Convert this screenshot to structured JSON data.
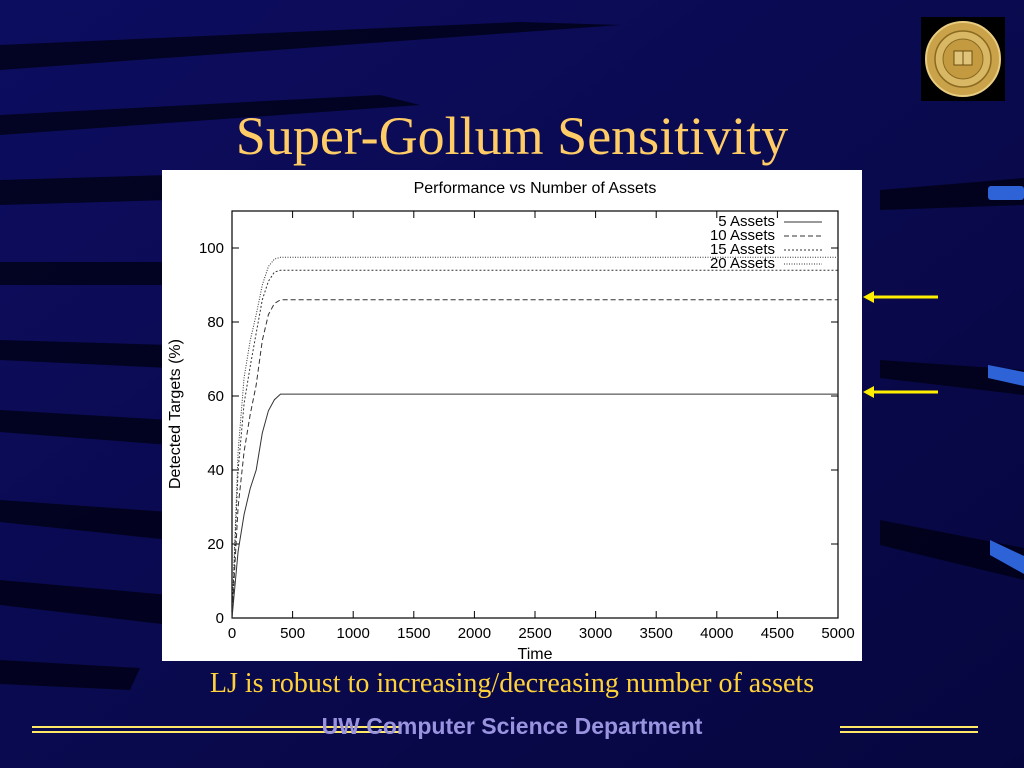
{
  "slide": {
    "title": "Super-Gollum Sensitivity",
    "caption": "LJ is robust to increasing/decreasing number of assets",
    "footer": "UW Computer Science Department",
    "colors": {
      "background": "#0a0a55",
      "title": "#ffcc66",
      "caption": "#ffd23a",
      "footer_text": "#9a94e0",
      "footer_rule": "#ffe866",
      "arrow": "#ffee00"
    },
    "logo_icon": "university-seal-icon"
  },
  "chart_data": {
    "type": "line",
    "title": "Performance vs Number of Assets",
    "xlabel": "Time",
    "ylabel": "Detected Targets (%)",
    "xlim": [
      0,
      5000
    ],
    "ylim": [
      0,
      110
    ],
    "x_ticks": [
      0,
      500,
      1000,
      1500,
      2000,
      2500,
      3000,
      3500,
      4000,
      4500,
      5000
    ],
    "y_ticks": [
      0,
      20,
      40,
      60,
      80,
      100
    ],
    "legend_position": "top-right",
    "grid": false,
    "series": [
      {
        "name": "5 Assets",
        "dash": "solid",
        "x": [
          0,
          50,
          100,
          150,
          200,
          250,
          300,
          350,
          400,
          5000
        ],
        "y": [
          0,
          18,
          28,
          35,
          40,
          50,
          56,
          59,
          60.5,
          60.5
        ]
      },
      {
        "name": "10 Assets",
        "dash": "dashed",
        "x": [
          0,
          50,
          100,
          150,
          200,
          250,
          300,
          350,
          400,
          5000
        ],
        "y": [
          0,
          30,
          45,
          55,
          63,
          75,
          82,
          85,
          86,
          86
        ]
      },
      {
        "name": "15 Assets",
        "dash": "dotted",
        "x": [
          0,
          50,
          100,
          150,
          200,
          250,
          300,
          350,
          400,
          5000
        ],
        "y": [
          0,
          40,
          58,
          68,
          77,
          86,
          91,
          93.5,
          94,
          94
        ]
      },
      {
        "name": "20 Assets",
        "dash": "dense-dotted",
        "x": [
          0,
          50,
          100,
          150,
          200,
          250,
          300,
          350,
          400,
          5000
        ],
        "y": [
          0,
          45,
          65,
          75,
          82,
          90,
          95,
          97,
          97.5,
          97.5
        ]
      }
    ],
    "annotations": [
      {
        "type": "arrow",
        "points_to_y": 86
      },
      {
        "type": "arrow",
        "points_to_y": 60.5
      }
    ]
  }
}
